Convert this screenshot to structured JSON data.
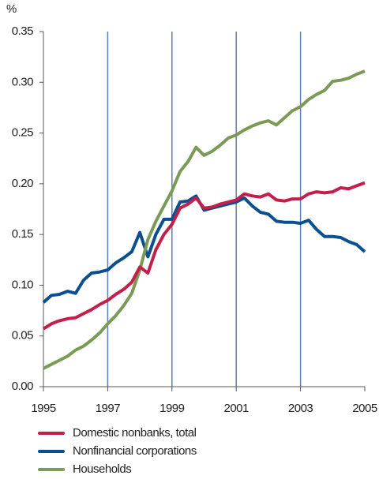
{
  "chart_data": {
    "type": "line",
    "ylabel": "%",
    "x": [
      1995,
      1995.25,
      1995.5,
      1995.75,
      1996,
      1996.25,
      1996.5,
      1996.75,
      1997,
      1997.25,
      1997.5,
      1997.75,
      1998,
      1998.25,
      1998.5,
      1998.75,
      1999,
      1999.25,
      1999.5,
      1999.75,
      2000,
      2000.25,
      2000.5,
      2000.75,
      2001,
      2001.25,
      2001.5,
      2001.75,
      2002,
      2002.25,
      2002.5,
      2002.75,
      2003,
      2003.25,
      2003.5,
      2003.75,
      2004,
      2004.25,
      2004.5,
      2004.75,
      2005
    ],
    "series": [
      {
        "name": "Domestic nonbanks, total",
        "color": "#c41e4a",
        "values": [
          0.057,
          0.062,
          0.065,
          0.067,
          0.068,
          0.072,
          0.076,
          0.081,
          0.085,
          0.091,
          0.096,
          0.103,
          0.118,
          0.112,
          0.135,
          0.15,
          0.16,
          0.176,
          0.18,
          0.186,
          0.176,
          0.177,
          0.18,
          0.182,
          0.184,
          0.19,
          0.188,
          0.187,
          0.19,
          0.184,
          0.183,
          0.185,
          0.185,
          0.19,
          0.192,
          0.191,
          0.192,
          0.196,
          0.195,
          0.198,
          0.201
        ]
      },
      {
        "name": "Nonfinancial corporations",
        "color": "#0a4f8f",
        "values": [
          0.083,
          0.09,
          0.091,
          0.094,
          0.092,
          0.105,
          0.112,
          0.113,
          0.115,
          0.122,
          0.127,
          0.133,
          0.152,
          0.128,
          0.15,
          0.165,
          0.165,
          0.182,
          0.183,
          0.188,
          0.174,
          0.176,
          0.178,
          0.18,
          0.182,
          0.186,
          0.178,
          0.172,
          0.17,
          0.163,
          0.162,
          0.162,
          0.161,
          0.164,
          0.155,
          0.148,
          0.148,
          0.147,
          0.143,
          0.14,
          0.133
        ]
      },
      {
        "name": "Households",
        "color": "#7a9a55",
        "values": [
          0.018,
          0.022,
          0.026,
          0.03,
          0.036,
          0.04,
          0.046,
          0.053,
          0.062,
          0.07,
          0.08,
          0.092,
          0.115,
          0.145,
          0.163,
          0.178,
          0.193,
          0.212,
          0.222,
          0.236,
          0.228,
          0.232,
          0.238,
          0.245,
          0.248,
          0.253,
          0.257,
          0.26,
          0.262,
          0.258,
          0.265,
          0.272,
          0.276,
          0.283,
          0.288,
          0.292,
          0.301,
          0.302,
          0.304,
          0.308,
          0.311
        ]
      }
    ],
    "xlim": [
      1995,
      2005
    ],
    "xticks": [
      1995,
      1997,
      1999,
      2001,
      2003,
      2005
    ],
    "xgrid": true,
    "ylim": [
      0,
      0.35
    ],
    "yticks": [
      {
        "value": 0,
        "label": "0.00"
      },
      0.05,
      {
        "value": 0.1,
        "label": "0.10"
      },
      0.15,
      {
        "value": 0.2,
        "label": "0.20"
      },
      0.25,
      {
        "value": 0.3,
        "label": "0.30"
      },
      0.35
    ]
  }
}
